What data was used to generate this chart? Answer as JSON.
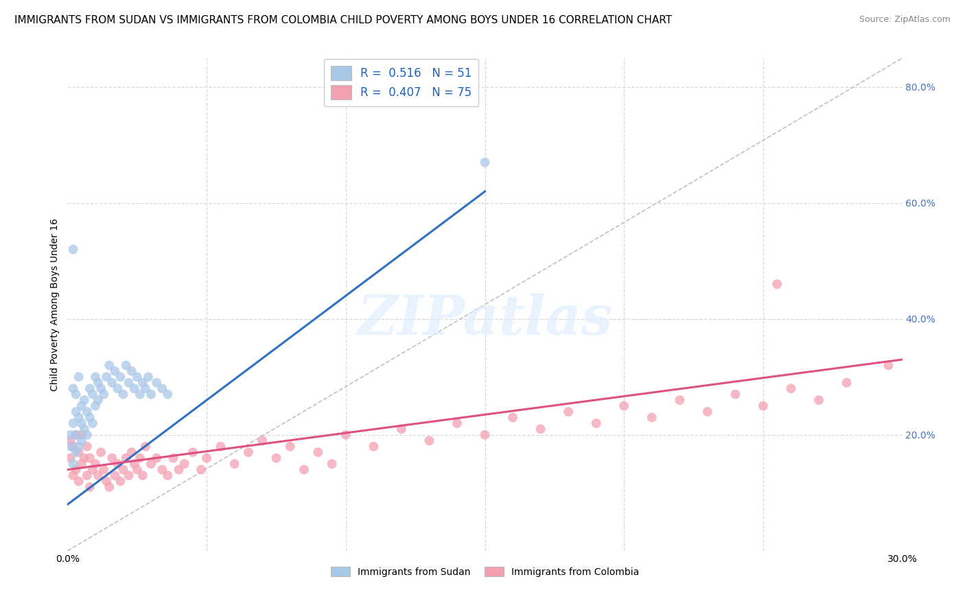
{
  "title": "IMMIGRANTS FROM SUDAN VS IMMIGRANTS FROM COLOMBIA CHILD POVERTY AMONG BOYS UNDER 16 CORRELATION CHART",
  "source": "Source: ZipAtlas.com",
  "ylabel": "Child Poverty Among Boys Under 16",
  "xlim": [
    0.0,
    0.3
  ],
  "ylim": [
    0.0,
    0.85
  ],
  "sudan_color": "#a8c8e8",
  "colombia_color": "#f4a0b0",
  "sudan_line_color": "#3070c0",
  "colombia_line_color": "#e05080",
  "diag_color": "#c0c0c0",
  "sudan_R": 0.516,
  "sudan_N": 51,
  "colombia_R": 0.407,
  "colombia_N": 75,
  "grid_color": "#d8d8d8",
  "background_color": "#ffffff",
  "title_fontsize": 11,
  "axis_label_fontsize": 10,
  "tick_fontsize": 10,
  "watermark": "ZIPatlas",
  "sudan_x": [
    0.001,
    0.001,
    0.002,
    0.002,
    0.002,
    0.003,
    0.003,
    0.003,
    0.003,
    0.004,
    0.004,
    0.004,
    0.005,
    0.005,
    0.005,
    0.006,
    0.006,
    0.007,
    0.007,
    0.008,
    0.008,
    0.009,
    0.009,
    0.01,
    0.01,
    0.011,
    0.011,
    0.012,
    0.013,
    0.014,
    0.015,
    0.016,
    0.017,
    0.018,
    0.019,
    0.02,
    0.021,
    0.022,
    0.023,
    0.024,
    0.025,
    0.026,
    0.027,
    0.028,
    0.029,
    0.03,
    0.032,
    0.034,
    0.036,
    0.002,
    0.15
  ],
  "sudan_y": [
    0.18,
    0.2,
    0.15,
    0.22,
    0.28,
    0.17,
    0.2,
    0.24,
    0.27,
    0.18,
    0.23,
    0.3,
    0.19,
    0.25,
    0.22,
    0.21,
    0.26,
    0.2,
    0.24,
    0.23,
    0.28,
    0.22,
    0.27,
    0.25,
    0.3,
    0.26,
    0.29,
    0.28,
    0.27,
    0.3,
    0.32,
    0.29,
    0.31,
    0.28,
    0.3,
    0.27,
    0.32,
    0.29,
    0.31,
    0.28,
    0.3,
    0.27,
    0.29,
    0.28,
    0.3,
    0.27,
    0.29,
    0.28,
    0.27,
    0.52,
    0.67
  ],
  "colombia_x": [
    0.001,
    0.001,
    0.002,
    0.002,
    0.003,
    0.003,
    0.004,
    0.004,
    0.005,
    0.005,
    0.006,
    0.007,
    0.007,
    0.008,
    0.008,
    0.009,
    0.01,
    0.011,
    0.012,
    0.013,
    0.014,
    0.015,
    0.016,
    0.017,
    0.018,
    0.019,
    0.02,
    0.021,
    0.022,
    0.023,
    0.024,
    0.025,
    0.026,
    0.027,
    0.028,
    0.03,
    0.032,
    0.034,
    0.036,
    0.038,
    0.04,
    0.042,
    0.045,
    0.048,
    0.05,
    0.055,
    0.06,
    0.065,
    0.07,
    0.075,
    0.08,
    0.085,
    0.09,
    0.095,
    0.1,
    0.11,
    0.12,
    0.13,
    0.14,
    0.15,
    0.16,
    0.17,
    0.18,
    0.19,
    0.2,
    0.21,
    0.22,
    0.23,
    0.24,
    0.25,
    0.26,
    0.27,
    0.28,
    0.255,
    0.295
  ],
  "colombia_y": [
    0.16,
    0.19,
    0.13,
    0.18,
    0.14,
    0.2,
    0.12,
    0.17,
    0.15,
    0.2,
    0.16,
    0.13,
    0.18,
    0.11,
    0.16,
    0.14,
    0.15,
    0.13,
    0.17,
    0.14,
    0.12,
    0.11,
    0.16,
    0.13,
    0.15,
    0.12,
    0.14,
    0.16,
    0.13,
    0.17,
    0.15,
    0.14,
    0.16,
    0.13,
    0.18,
    0.15,
    0.16,
    0.14,
    0.13,
    0.16,
    0.14,
    0.15,
    0.17,
    0.14,
    0.16,
    0.18,
    0.15,
    0.17,
    0.19,
    0.16,
    0.18,
    0.14,
    0.17,
    0.15,
    0.2,
    0.18,
    0.21,
    0.19,
    0.22,
    0.2,
    0.23,
    0.21,
    0.24,
    0.22,
    0.25,
    0.23,
    0.26,
    0.24,
    0.27,
    0.25,
    0.28,
    0.26,
    0.29,
    0.46,
    0.32
  ]
}
